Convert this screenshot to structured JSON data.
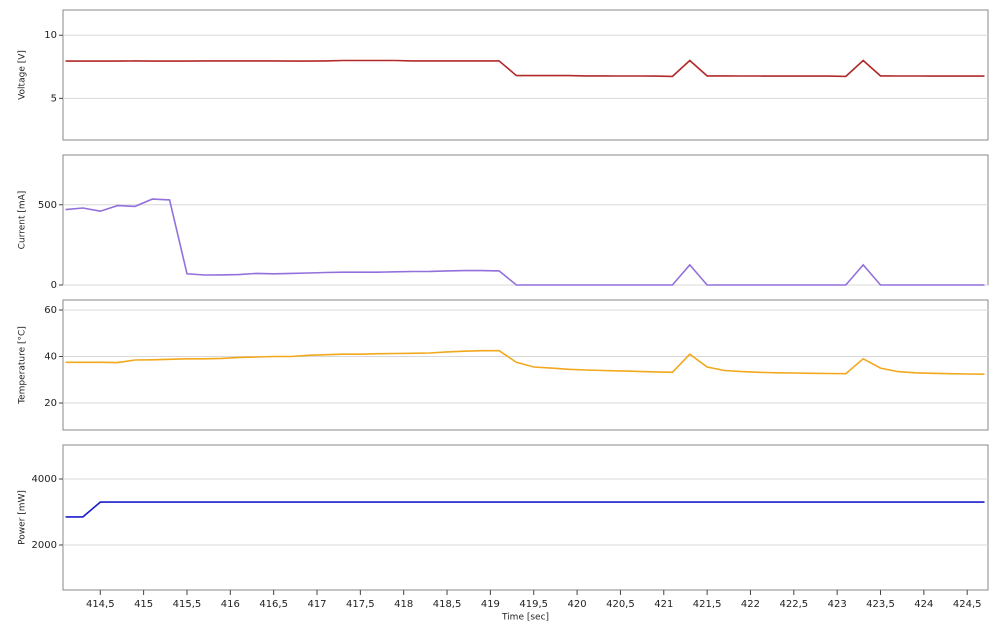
{
  "chart_data": [
    {
      "type": "line",
      "ylabel": "Voltage [V]",
      "xlim": [
        414.07,
        424.74
      ],
      "ylim": [
        1.7,
        12
      ],
      "yticks": [
        5,
        10
      ],
      "grid": true,
      "x": [
        414.1,
        414.3,
        414.5,
        414.7,
        414.9,
        415.1,
        415.3,
        415.5,
        415.7,
        415.9,
        416.1,
        416.3,
        416.5,
        416.7,
        416.9,
        417.1,
        417.3,
        417.5,
        417.7,
        417.9,
        418.1,
        418.3,
        418.5,
        418.7,
        418.9,
        419.1,
        419.3,
        419.5,
        419.7,
        419.9,
        420.1,
        420.3,
        420.5,
        420.7,
        420.9,
        421.1,
        421.3,
        421.5,
        421.7,
        421.9,
        422.1,
        422.3,
        422.5,
        422.7,
        422.9,
        423.1,
        423.3,
        423.5,
        423.7,
        423.9,
        424.1,
        424.3,
        424.5,
        424.7
      ],
      "series": [
        {
          "color": "#b22a2a",
          "values": [
            7.95,
            7.95,
            7.95,
            7.95,
            7.97,
            7.95,
            7.95,
            7.95,
            7.97,
            7.97,
            7.97,
            7.97,
            7.97,
            7.95,
            7.95,
            7.97,
            8.0,
            8.0,
            8.0,
            8.0,
            7.97,
            7.97,
            7.97,
            7.97,
            7.97,
            7.97,
            6.8,
            6.8,
            6.8,
            6.8,
            6.78,
            6.78,
            6.77,
            6.77,
            6.76,
            6.74,
            8.0,
            6.78,
            6.78,
            6.77,
            6.77,
            6.76,
            6.76,
            6.76,
            6.76,
            6.74,
            8.0,
            6.78,
            6.77,
            6.77,
            6.76,
            6.76,
            6.76,
            6.76
          ]
        }
      ]
    },
    {
      "type": "line",
      "ylabel": "Current [mA]",
      "xlim": [
        414.07,
        424.74
      ],
      "ylim": [
        0,
        810
      ],
      "yticks": [
        0,
        500
      ],
      "grid": true,
      "x": [
        414.1,
        414.3,
        414.5,
        414.7,
        414.9,
        415.1,
        415.3,
        415.5,
        415.7,
        415.9,
        416.1,
        416.3,
        416.5,
        416.7,
        416.9,
        417.1,
        417.3,
        417.5,
        417.7,
        417.9,
        418.1,
        418.3,
        418.5,
        418.7,
        418.9,
        419.1,
        419.3,
        419.5,
        419.7,
        419.9,
        420.1,
        420.3,
        420.5,
        420.7,
        420.9,
        421.1,
        421.3,
        421.5,
        421.7,
        421.9,
        422.1,
        422.3,
        422.5,
        422.7,
        422.9,
        423.1,
        423.3,
        423.5,
        423.7,
        423.9,
        424.1,
        424.3,
        424.5,
        424.7
      ],
      "series": [
        {
          "color": "#9370db",
          "values": [
            470,
            480,
            460,
            495,
            490,
            535,
            530,
            70,
            62,
            63,
            65,
            72,
            70,
            72,
            75,
            78,
            80,
            80,
            80,
            82,
            84,
            85,
            88,
            90,
            90,
            88,
            0,
            0,
            0,
            0,
            0,
            0,
            0,
            0,
            0,
            0,
            125,
            0,
            0,
            0,
            0,
            0,
            0,
            0,
            0,
            0,
            125,
            0,
            0,
            0,
            0,
            0,
            0,
            0
          ]
        }
      ]
    },
    {
      "type": "line",
      "ylabel": "Temperature [°C]",
      "xlim": [
        414.07,
        424.74
      ],
      "ylim": [
        8.4,
        64.3
      ],
      "yticks": [
        20,
        40,
        60
      ],
      "grid": true,
      "x": [
        414.1,
        414.3,
        414.5,
        414.7,
        414.9,
        415.1,
        415.3,
        415.5,
        415.7,
        415.9,
        416.1,
        416.3,
        416.5,
        416.7,
        416.9,
        417.1,
        417.3,
        417.5,
        417.7,
        417.9,
        418.1,
        418.3,
        418.5,
        418.7,
        418.9,
        419.1,
        419.3,
        419.5,
        419.7,
        419.9,
        420.1,
        420.3,
        420.5,
        420.7,
        420.9,
        421.1,
        421.3,
        421.5,
        421.7,
        421.9,
        422.1,
        422.3,
        422.5,
        422.7,
        422.9,
        423.1,
        423.3,
        423.5,
        423.7,
        423.9,
        424.1,
        424.3,
        424.5,
        424.7
      ],
      "series": [
        {
          "color": "#f2a81d",
          "values": [
            37.5,
            37.5,
            37.5,
            37.4,
            38.5,
            38.6,
            38.8,
            39,
            39,
            39.2,
            39.6,
            39.8,
            40,
            40,
            40.5,
            40.8,
            41,
            41,
            41.2,
            41.3,
            41.4,
            41.5,
            42,
            42.3,
            42.5,
            42.5,
            37.5,
            35.5,
            35,
            34.5,
            34.2,
            34,
            33.8,
            33.6,
            33.4,
            33.2,
            41,
            35.5,
            34,
            33.5,
            33.2,
            33,
            32.9,
            32.8,
            32.7,
            32.6,
            39,
            35,
            33.5,
            33,
            32.8,
            32.6,
            32.5,
            32.4
          ]
        }
      ]
    },
    {
      "type": "line",
      "ylabel": "Power [mW]",
      "xlabel": "Time [sec]",
      "xlim": [
        414.07,
        424.74
      ],
      "ylim": [
        636,
        5030
      ],
      "yticks": [
        2000,
        4000
      ],
      "grid": true,
      "xticks": [
        {
          "value": 414.5,
          "label": "414,5"
        },
        415,
        {
          "value": 415.5,
          "label": "415,5"
        },
        416,
        {
          "value": 416.5,
          "label": "416,5"
        },
        417,
        {
          "value": 417.5,
          "label": "417,5"
        },
        418,
        {
          "value": 418.5,
          "label": "418,5"
        },
        419,
        {
          "value": 419.5,
          "label": "419,5"
        },
        420,
        {
          "value": 420.5,
          "label": "420,5"
        },
        421,
        {
          "value": 421.5,
          "label": "421,5"
        },
        422,
        {
          "value": 422.5,
          "label": "422,5"
        },
        423,
        {
          "value": 423.5,
          "label": "423,5"
        },
        424,
        {
          "value": 424.5,
          "label": "424,5"
        }
      ],
      "x": [
        414.1,
        414.3,
        414.5,
        414.7,
        414.9,
        415.1,
        415.3,
        415.5,
        415.7,
        415.9,
        416.1,
        416.3,
        416.5,
        416.7,
        416.9,
        417.1,
        417.3,
        417.5,
        417.7,
        417.9,
        418.1,
        418.3,
        418.5,
        418.7,
        418.9,
        419.1,
        419.3,
        419.5,
        419.7,
        419.9,
        420.1,
        420.3,
        420.5,
        420.7,
        420.9,
        421.1,
        421.3,
        421.5,
        421.7,
        421.9,
        422.1,
        422.3,
        422.5,
        422.7,
        422.9,
        423.1,
        423.3,
        423.5,
        423.7,
        423.9,
        424.1,
        424.3,
        424.5,
        424.7
      ],
      "series": [
        {
          "color": "#1c1ccc",
          "values": [
            2850,
            2850,
            3300,
            3300,
            3300,
            3300,
            3300,
            3300,
            3300,
            3300,
            3300,
            3300,
            3300,
            3300,
            3300,
            3300,
            3300,
            3300,
            3300,
            3300,
            3300,
            3300,
            3300,
            3300,
            3300,
            3300,
            3300,
            3300,
            3300,
            3300,
            3300,
            3300,
            3300,
            3300,
            3300,
            3300,
            3300,
            3300,
            3300,
            3300,
            3300,
            3300,
            3300,
            3300,
            3300,
            3300,
            3300,
            3300,
            3300,
            3300,
            3300,
            3300,
            3300,
            3300
          ]
        }
      ]
    }
  ]
}
